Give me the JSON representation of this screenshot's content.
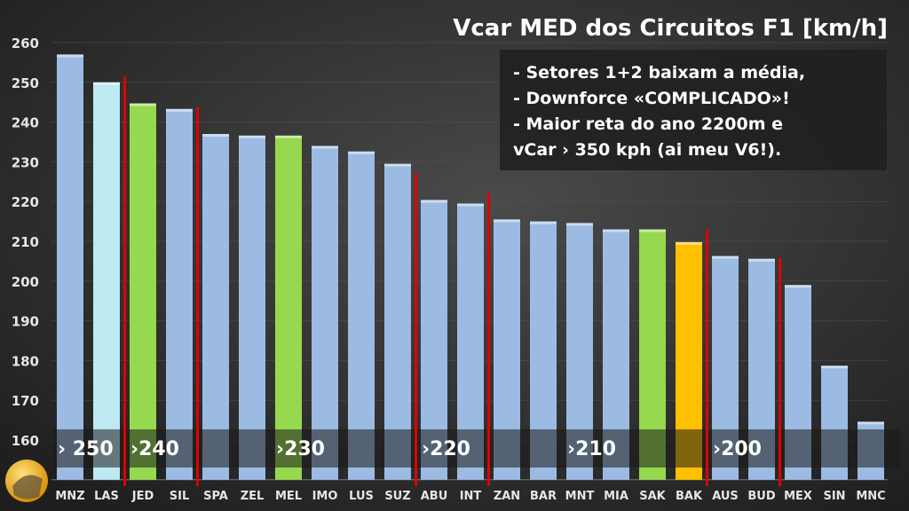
{
  "chart_data": {
    "type": "bar",
    "title": "Vcar MED dos Circuitos F1 [km/h]",
    "xlabel": "",
    "ylabel": "",
    "ylim": [
      150,
      265
    ],
    "yticks": [
      160,
      170,
      180,
      190,
      200,
      210,
      220,
      230,
      240,
      250,
      260
    ],
    "grid": true,
    "categories": [
      "MNZ",
      "LAS",
      "JED",
      "SIL",
      "SPA",
      "ZEL",
      "MEL",
      "IMO",
      "LUS",
      "SUZ",
      "ABU",
      "INT",
      "ZAN",
      "BAR",
      "MNT",
      "MIA",
      "SAK",
      "BAK",
      "AUS",
      "BUD",
      "MEX",
      "SIN",
      "MNC"
    ],
    "values": [
      257,
      250,
      244.7,
      243.3,
      237,
      236.6,
      236.6,
      234,
      232.6,
      229.5,
      220.4,
      219.5,
      215.5,
      215,
      214.6,
      213,
      213,
      209.8,
      206.3,
      205.6,
      199,
      178.7,
      164.6
    ],
    "bar_colors": [
      "#9bbbe3",
      "#bde9f3",
      "#96d94e",
      "#9bbbe3",
      "#9bbbe3",
      "#9bbbe3",
      "#96d94e",
      "#9bbbe3",
      "#9bbbe3",
      "#9bbbe3",
      "#9bbbe3",
      "#9bbbe3",
      "#9bbbe3",
      "#9bbbe3",
      "#9bbbe3",
      "#9bbbe3",
      "#96d94e",
      "#ffc000",
      "#9bbbe3",
      "#9bbbe3",
      "#9bbbe3",
      "#9bbbe3",
      "#9bbbe3"
    ],
    "separators_after_index": [
      1,
      3,
      9,
      11,
      17,
      19
    ],
    "separator_color": "#e00000",
    "band_labels": [
      {
        "text": "› 250",
        "start_index": 0
      },
      {
        "text": "›240",
        "start_index": 2
      },
      {
        "text": "›230",
        "start_index": 6
      },
      {
        "text": "›220",
        "start_index": 10
      },
      {
        "text": "›210",
        "start_index": 14
      },
      {
        "text": "›200",
        "start_index": 18
      }
    ],
    "annotation_lines": [
      "- Setores 1+2 baixam a média,",
      "- Downforce «COMPLICADO»!",
      "- Maior reta do ano 2200m e",
      "   vCar › 350 kph (ai meu V6!)."
    ]
  }
}
